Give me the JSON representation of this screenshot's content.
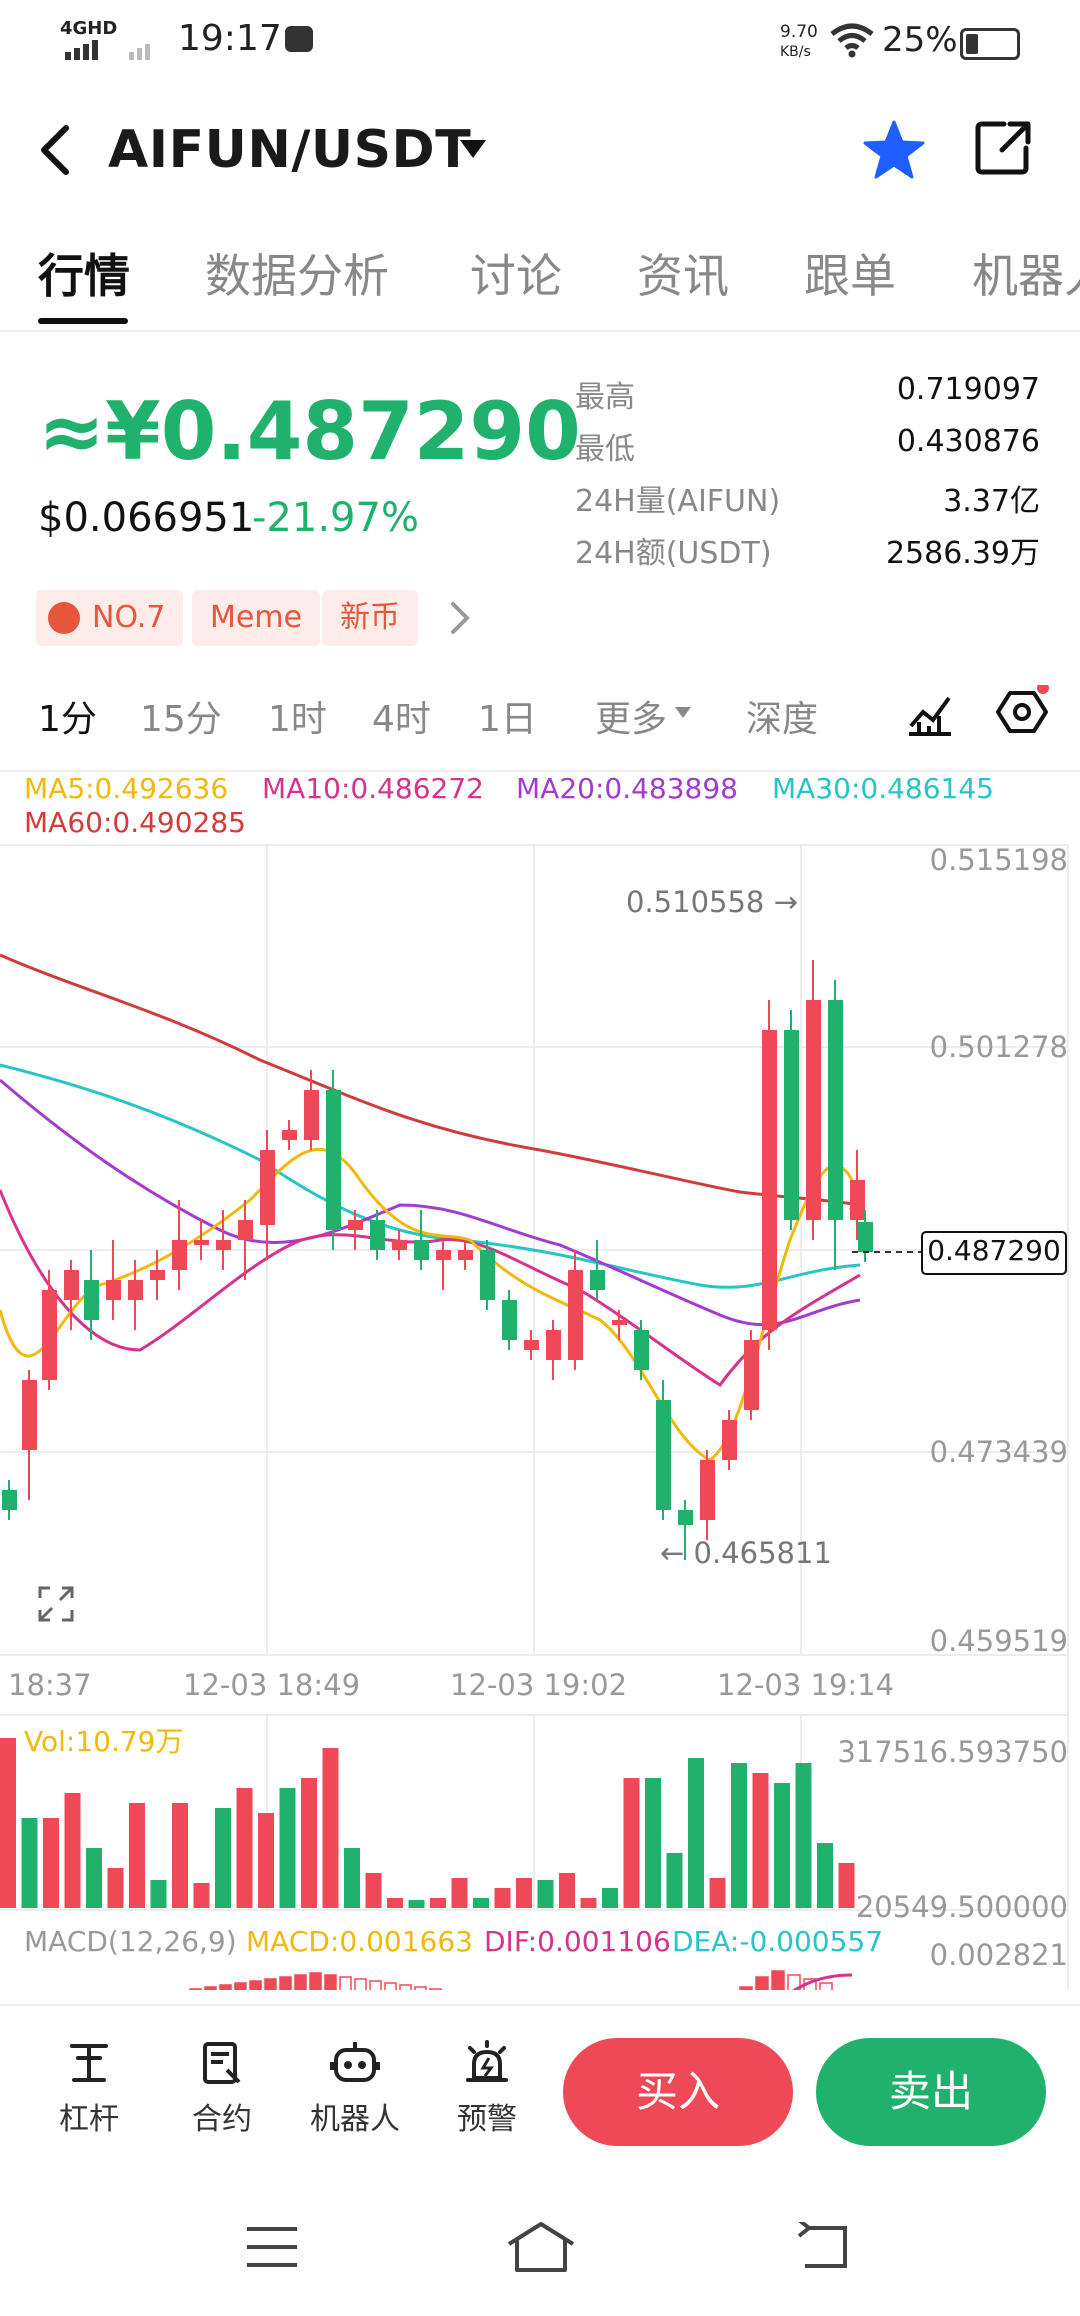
{
  "status_bar": {
    "time": "19:17",
    "network": "4GHD",
    "speed": "9.70",
    "speed_unit": "KB/s",
    "battery": "25%"
  },
  "header": {
    "pair": "AIFUN/USDT"
  },
  "tabs": [
    {
      "label": "行情"
    },
    {
      "label": "数据分析"
    },
    {
      "label": "讨论"
    },
    {
      "label": "资讯"
    },
    {
      "label": "跟单"
    },
    {
      "label": "机器人"
    }
  ],
  "price": {
    "cny": "≈¥0.487290",
    "usd": "$0.066951",
    "change": "-21.97%"
  },
  "stats": [
    {
      "label": "最高",
      "value": "0.719097"
    },
    {
      "label": "最低",
      "value": "0.430876"
    },
    {
      "label": "24H量(AIFUN)",
      "value": "3.37亿"
    },
    {
      "label": "24H额(USDT)",
      "value": "2586.39万"
    }
  ],
  "tags": [
    {
      "label": "NO.7"
    },
    {
      "label": "Meme"
    },
    {
      "label": "新币"
    }
  ],
  "timeframes": [
    {
      "label": "1分"
    },
    {
      "label": "15分"
    },
    {
      "label": "1时"
    },
    {
      "label": "4时"
    },
    {
      "label": "1日"
    },
    {
      "label": "更多"
    },
    {
      "label": "深度"
    }
  ],
  "ma_legend": [
    {
      "label": "MA5:0.492636",
      "color": "#f0b90b"
    },
    {
      "label": "MA10:0.486272",
      "color": "#d6338a"
    },
    {
      "label": "MA20:0.483898",
      "color": "#a23bd1"
    },
    {
      "label": "MA30:0.486145",
      "color": "#27c5c5"
    },
    {
      "label": "MA60:0.490285",
      "color": "#d23b3b"
    }
  ],
  "chart": {
    "y_labels": [
      "0.515198",
      "0.501278",
      "0.473439",
      "0.459519"
    ],
    "x_labels": [
      "18:37",
      "12-03 18:49",
      "12-03 19:02",
      "12-03 19:14"
    ],
    "high_label": "0.510558 →",
    "low_label": "← 0.465811",
    "current_price": "0.487290",
    "vol_label": "Vol:10.79万",
    "vol_max": "317516.593750",
    "vol_min": "20549.500000",
    "macd_params": "MACD(12,26,9)",
    "macd_value": "MACD:0.001663",
    "dif_value": "DIF:0.001106",
    "dea_value": "DEA:-0.000557",
    "macd_top": "0.002821"
  },
  "colors": {
    "up": "#20b26c",
    "down": "#ef4957",
    "accent": "#1f5eff"
  },
  "bottom_nav": [
    {
      "label": "杠杆",
      "icon": "leverage-icon"
    },
    {
      "label": "合约",
      "icon": "contract-icon"
    },
    {
      "label": "机器人",
      "icon": "robot-icon"
    },
    {
      "label": "预警",
      "icon": "alarm-icon"
    }
  ],
  "actions": {
    "buy": "买入",
    "sell": "卖出"
  },
  "icons": [
    "back-icon",
    "dropdown-icon",
    "star-icon",
    "share-icon",
    "chevron-right-icon",
    "indicator-icon",
    "settings-icon",
    "expand-icon",
    "menu-icon",
    "home-icon",
    "back-nav-icon"
  ]
}
